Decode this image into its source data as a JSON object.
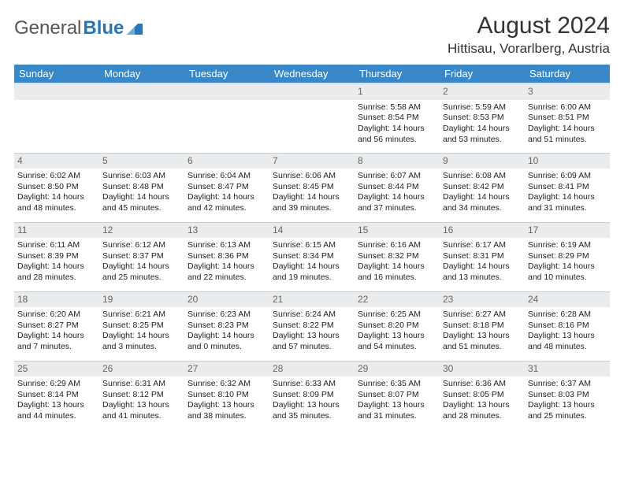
{
  "brand": {
    "textA": "General",
    "textB": "Blue"
  },
  "title": "August 2024",
  "location": "Hittisau, Vorarlberg, Austria",
  "colors": {
    "header_bg": "#3a87c8",
    "header_text": "#ffffff",
    "daynum_bg": "#e9ebec",
    "daynum_text": "#666666",
    "cell_border": "#c9ced2",
    "body_text": "#222222",
    "brand_gray": "#555555",
    "brand_blue": "#2a74b8"
  },
  "weekdays": [
    "Sunday",
    "Monday",
    "Tuesday",
    "Wednesday",
    "Thursday",
    "Friday",
    "Saturday"
  ],
  "weeks": [
    [
      null,
      null,
      null,
      null,
      {
        "n": "1",
        "sr": "5:58 AM",
        "ss": "8:54 PM",
        "dl": "14 hours and 56 minutes."
      },
      {
        "n": "2",
        "sr": "5:59 AM",
        "ss": "8:53 PM",
        "dl": "14 hours and 53 minutes."
      },
      {
        "n": "3",
        "sr": "6:00 AM",
        "ss": "8:51 PM",
        "dl": "14 hours and 51 minutes."
      }
    ],
    [
      {
        "n": "4",
        "sr": "6:02 AM",
        "ss": "8:50 PM",
        "dl": "14 hours and 48 minutes."
      },
      {
        "n": "5",
        "sr": "6:03 AM",
        "ss": "8:48 PM",
        "dl": "14 hours and 45 minutes."
      },
      {
        "n": "6",
        "sr": "6:04 AM",
        "ss": "8:47 PM",
        "dl": "14 hours and 42 minutes."
      },
      {
        "n": "7",
        "sr": "6:06 AM",
        "ss": "8:45 PM",
        "dl": "14 hours and 39 minutes."
      },
      {
        "n": "8",
        "sr": "6:07 AM",
        "ss": "8:44 PM",
        "dl": "14 hours and 37 minutes."
      },
      {
        "n": "9",
        "sr": "6:08 AM",
        "ss": "8:42 PM",
        "dl": "14 hours and 34 minutes."
      },
      {
        "n": "10",
        "sr": "6:09 AM",
        "ss": "8:41 PM",
        "dl": "14 hours and 31 minutes."
      }
    ],
    [
      {
        "n": "11",
        "sr": "6:11 AM",
        "ss": "8:39 PM",
        "dl": "14 hours and 28 minutes."
      },
      {
        "n": "12",
        "sr": "6:12 AM",
        "ss": "8:37 PM",
        "dl": "14 hours and 25 minutes."
      },
      {
        "n": "13",
        "sr": "6:13 AM",
        "ss": "8:36 PM",
        "dl": "14 hours and 22 minutes."
      },
      {
        "n": "14",
        "sr": "6:15 AM",
        "ss": "8:34 PM",
        "dl": "14 hours and 19 minutes."
      },
      {
        "n": "15",
        "sr": "6:16 AM",
        "ss": "8:32 PM",
        "dl": "14 hours and 16 minutes."
      },
      {
        "n": "16",
        "sr": "6:17 AM",
        "ss": "8:31 PM",
        "dl": "14 hours and 13 minutes."
      },
      {
        "n": "17",
        "sr": "6:19 AM",
        "ss": "8:29 PM",
        "dl": "14 hours and 10 minutes."
      }
    ],
    [
      {
        "n": "18",
        "sr": "6:20 AM",
        "ss": "8:27 PM",
        "dl": "14 hours and 7 minutes."
      },
      {
        "n": "19",
        "sr": "6:21 AM",
        "ss": "8:25 PM",
        "dl": "14 hours and 3 minutes."
      },
      {
        "n": "20",
        "sr": "6:23 AM",
        "ss": "8:23 PM",
        "dl": "14 hours and 0 minutes."
      },
      {
        "n": "21",
        "sr": "6:24 AM",
        "ss": "8:22 PM",
        "dl": "13 hours and 57 minutes."
      },
      {
        "n": "22",
        "sr": "6:25 AM",
        "ss": "8:20 PM",
        "dl": "13 hours and 54 minutes."
      },
      {
        "n": "23",
        "sr": "6:27 AM",
        "ss": "8:18 PM",
        "dl": "13 hours and 51 minutes."
      },
      {
        "n": "24",
        "sr": "6:28 AM",
        "ss": "8:16 PM",
        "dl": "13 hours and 48 minutes."
      }
    ],
    [
      {
        "n": "25",
        "sr": "6:29 AM",
        "ss": "8:14 PM",
        "dl": "13 hours and 44 minutes."
      },
      {
        "n": "26",
        "sr": "6:31 AM",
        "ss": "8:12 PM",
        "dl": "13 hours and 41 minutes."
      },
      {
        "n": "27",
        "sr": "6:32 AM",
        "ss": "8:10 PM",
        "dl": "13 hours and 38 minutes."
      },
      {
        "n": "28",
        "sr": "6:33 AM",
        "ss": "8:09 PM",
        "dl": "13 hours and 35 minutes."
      },
      {
        "n": "29",
        "sr": "6:35 AM",
        "ss": "8:07 PM",
        "dl": "13 hours and 31 minutes."
      },
      {
        "n": "30",
        "sr": "6:36 AM",
        "ss": "8:05 PM",
        "dl": "13 hours and 28 minutes."
      },
      {
        "n": "31",
        "sr": "6:37 AM",
        "ss": "8:03 PM",
        "dl": "13 hours and 25 minutes."
      }
    ]
  ],
  "labels": {
    "sunrise": "Sunrise:",
    "sunset": "Sunset:",
    "daylight": "Daylight:"
  }
}
